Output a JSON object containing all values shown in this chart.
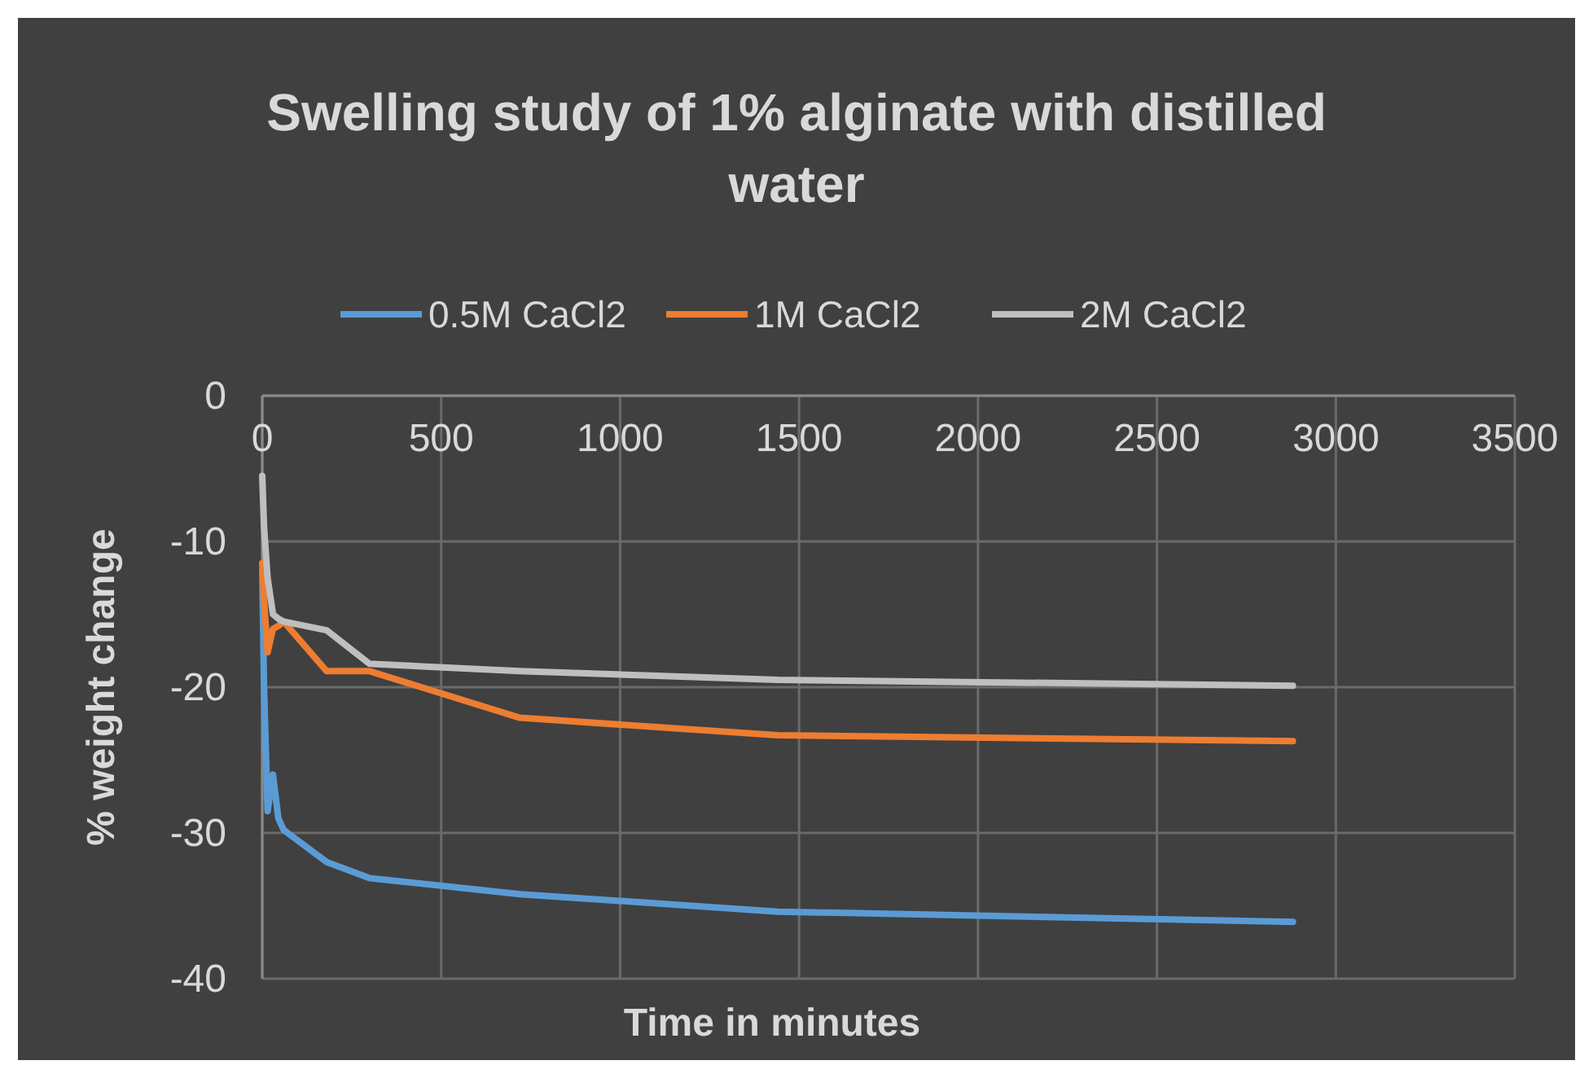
{
  "chart_data": {
    "type": "line",
    "title": "Swelling study of 1% alginate with distilled water",
    "xlabel": "Time in minutes",
    "ylabel": "% weight change",
    "x": [
      0,
      5,
      15,
      30,
      45,
      60,
      180,
      300,
      720,
      1440,
      2880
    ],
    "series": [
      {
        "name": "0.5M CaCl2",
        "color": "#5b9bd5",
        "values": [
          -12,
          -20,
          -28.5,
          -26,
          -29,
          -29.8,
          -32,
          -33.1,
          -34.2,
          -35.4,
          -36.1
        ]
      },
      {
        "name": "1M CaCl2",
        "color": "#ed7d31",
        "values": [
          -11.5,
          -14,
          -17.6,
          -16,
          -15.8,
          -15.5,
          -18.9,
          -18.9,
          -22.1,
          -23.3,
          -23.7
        ]
      },
      {
        "name": "2M CaCl2",
        "color": "#bfbfbf",
        "values": [
          -5.5,
          -9,
          -12.5,
          -15,
          -15.3,
          -15.5,
          -16.1,
          -18.4,
          -18.9,
          -19.5,
          -19.9
        ]
      }
    ],
    "xlim": [
      0,
      3500
    ],
    "xticks": [
      0,
      500,
      1000,
      1500,
      2000,
      2500,
      3000,
      3500
    ],
    "ylim": [
      -40,
      0
    ],
    "yticks": [
      -40,
      -30,
      -20,
      -10,
      0
    ],
    "grid": true,
    "legend": "top",
    "marker": "none",
    "line_style": "solid"
  }
}
